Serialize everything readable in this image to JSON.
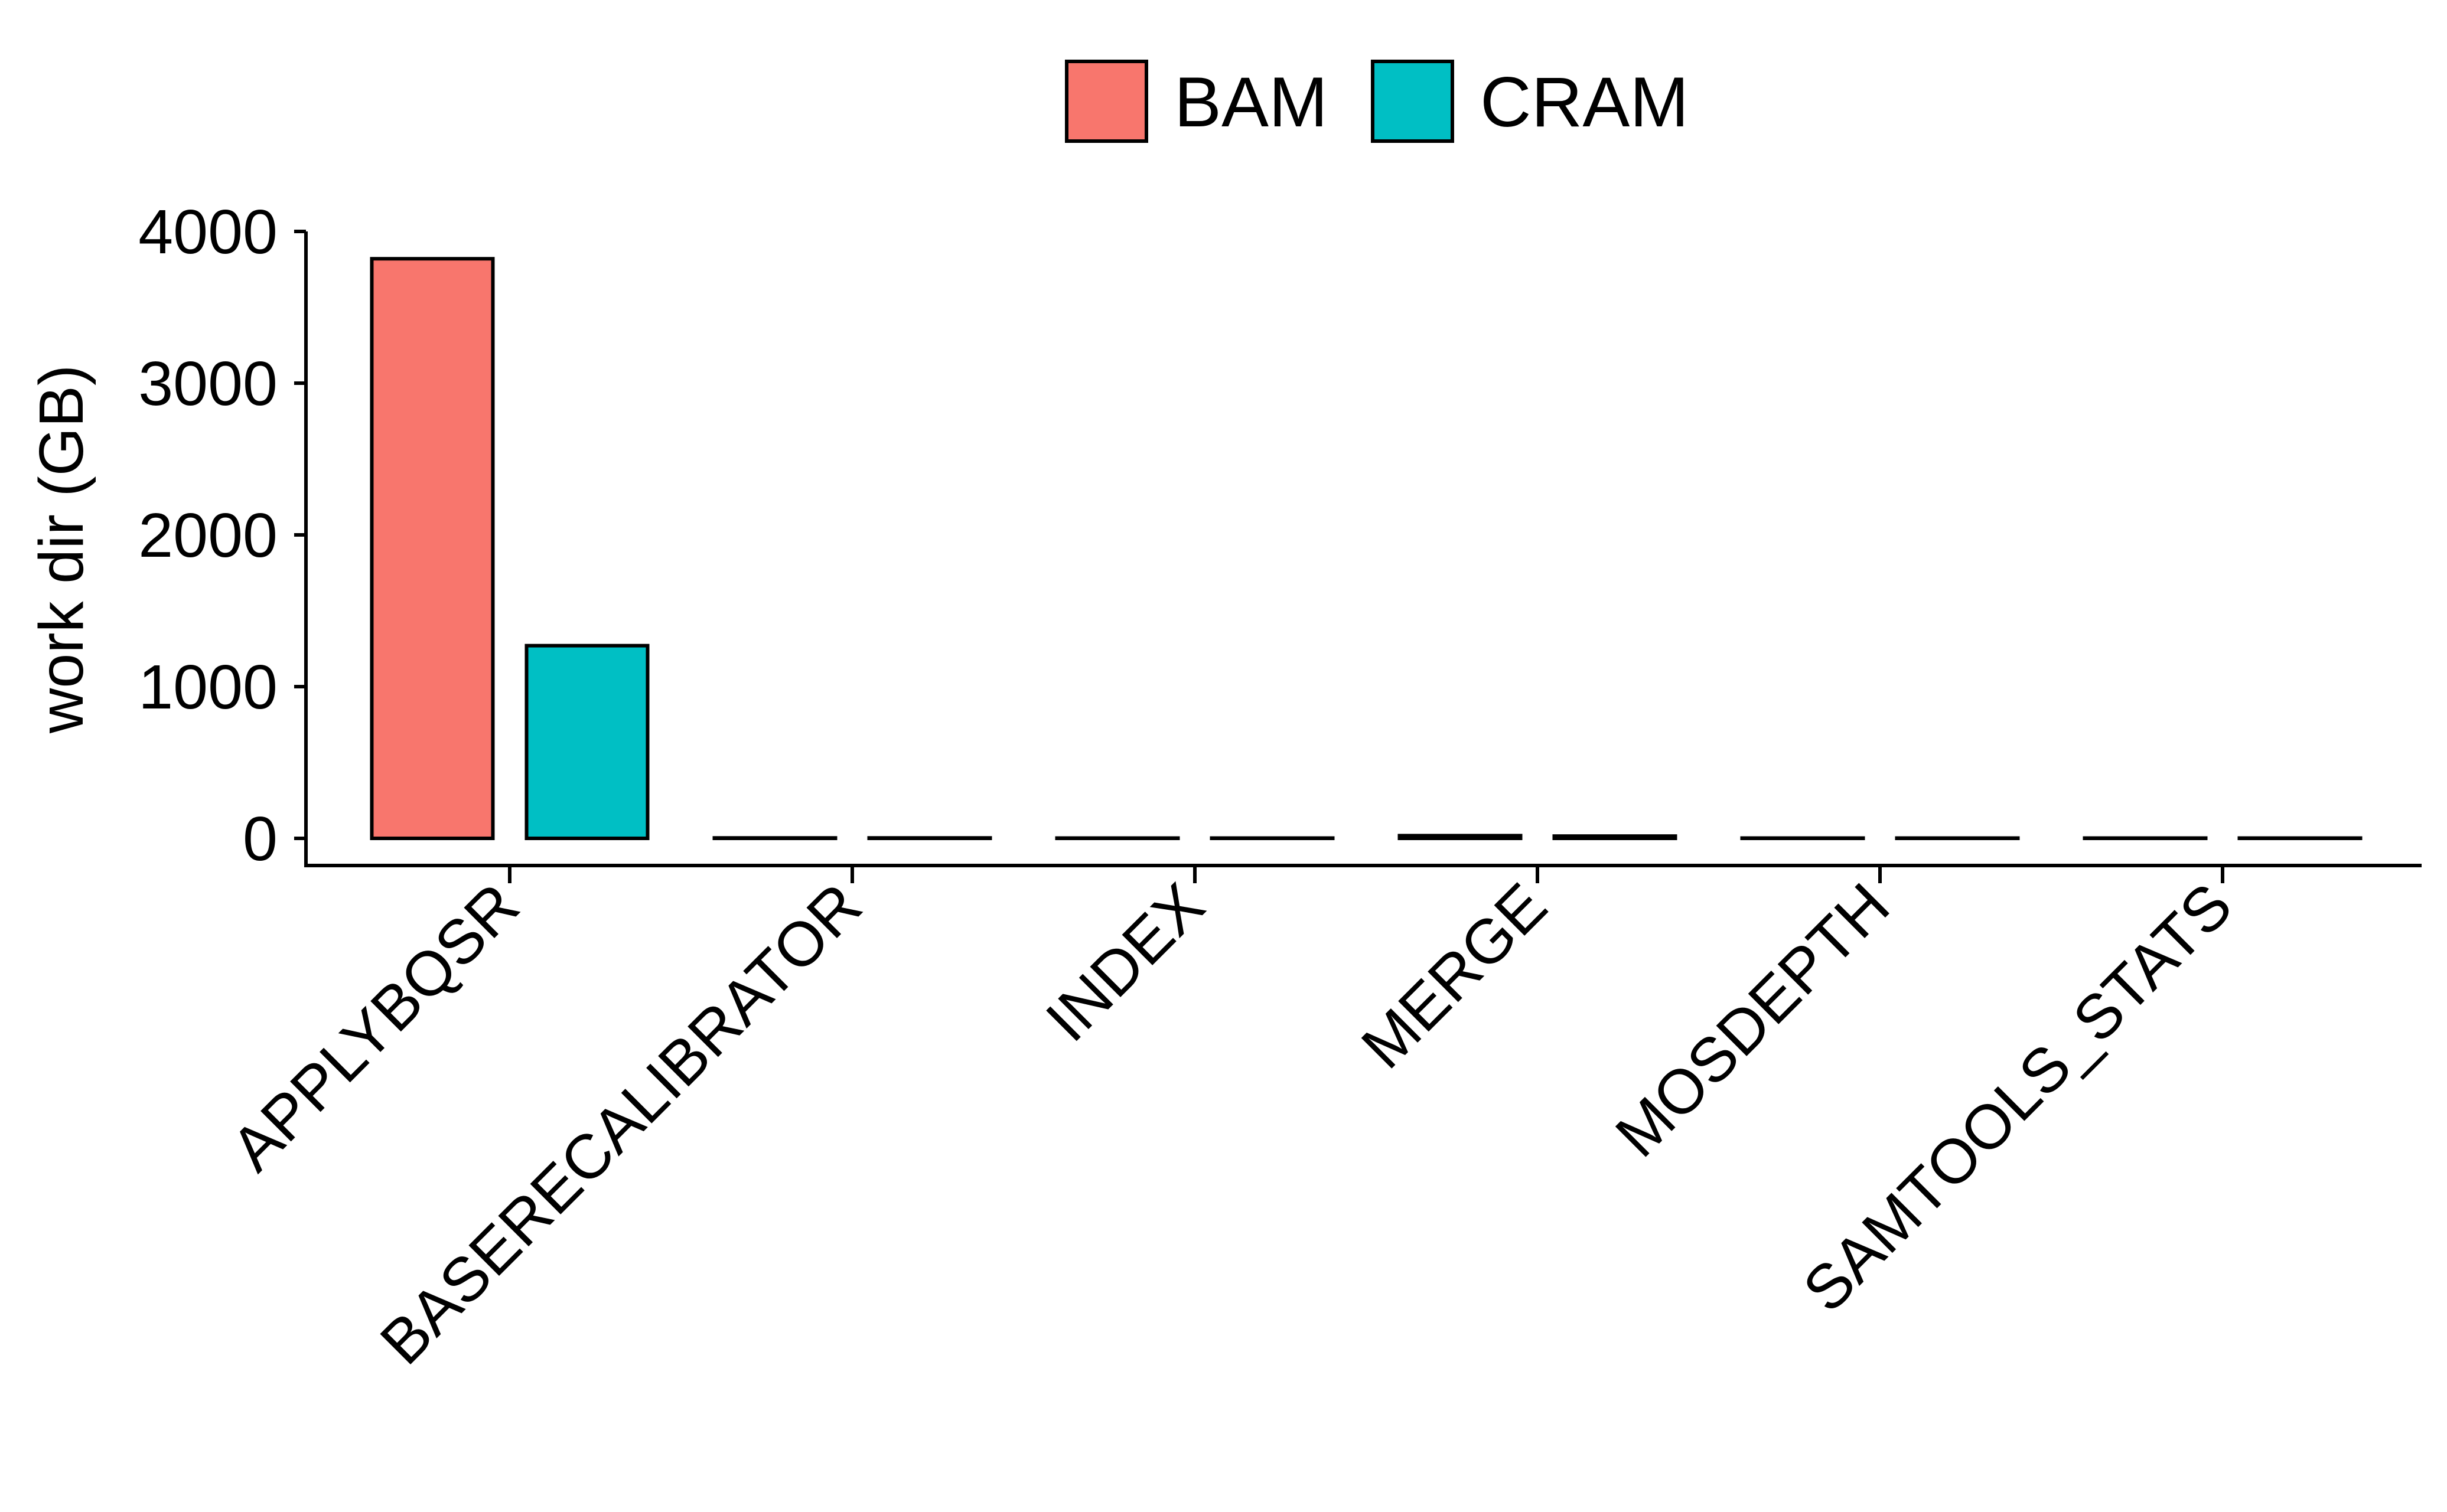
{
  "chart_data": {
    "type": "bar",
    "title": "",
    "xlabel": "",
    "ylabel": "work dir (GB)",
    "ylim": [
      0,
      4000
    ],
    "yticks": [
      0,
      1000,
      2000,
      3000,
      4000
    ],
    "grid": false,
    "legend_position": "top",
    "categories": [
      "APPLYBQSR",
      "BASERECALIBRATOR",
      "INDEX",
      "MERGE",
      "MOSDEPTH",
      "SAMTOOLS_STATS"
    ],
    "series": [
      {
        "name": "BAM",
        "color": "#F8766D",
        "values": [
          3820,
          3,
          2,
          18,
          2,
          2
        ]
      },
      {
        "name": "CRAM",
        "color": "#00BFC4",
        "values": [
          1270,
          3,
          2,
          15,
          2,
          2
        ]
      }
    ]
  }
}
